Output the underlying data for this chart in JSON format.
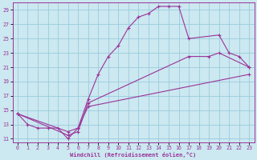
{
  "xlabel": "Windchill (Refroidissement éolien,°C)",
  "bg_color": "#cce8f0",
  "grid_color": "#99ccdd",
  "line_color": "#993399",
  "xlim": [
    -0.5,
    23.5
  ],
  "ylim": [
    10.5,
    30
  ],
  "yticks": [
    11,
    13,
    15,
    17,
    19,
    21,
    23,
    25,
    27,
    29
  ],
  "xticks": [
    0,
    1,
    2,
    3,
    4,
    5,
    6,
    7,
    8,
    9,
    10,
    11,
    12,
    13,
    14,
    15,
    16,
    17,
    18,
    19,
    20,
    21,
    22,
    23
  ],
  "line1_x": [
    0,
    1,
    2,
    3,
    4,
    5,
    6,
    7,
    8,
    9,
    10,
    11,
    12,
    13,
    14,
    15,
    16,
    17,
    20,
    21,
    22,
    23
  ],
  "line1_y": [
    14.5,
    13.0,
    12.5,
    12.5,
    12.5,
    11.0,
    12.5,
    16.5,
    20.0,
    22.5,
    24.0,
    26.5,
    28.0,
    28.5,
    29.5,
    29.5,
    29.5,
    25.0,
    25.5,
    23.0,
    22.5,
    21.0
  ],
  "line2_x": [
    0,
    5,
    6,
    7,
    17,
    19,
    20,
    23
  ],
  "line2_y": [
    14.5,
    11.5,
    12.0,
    16.0,
    22.5,
    22.5,
    23.0,
    21.0
  ],
  "line3_x": [
    0,
    5,
    6,
    7,
    23
  ],
  "line3_y": [
    14.5,
    12.0,
    12.5,
    15.5,
    20.0
  ]
}
